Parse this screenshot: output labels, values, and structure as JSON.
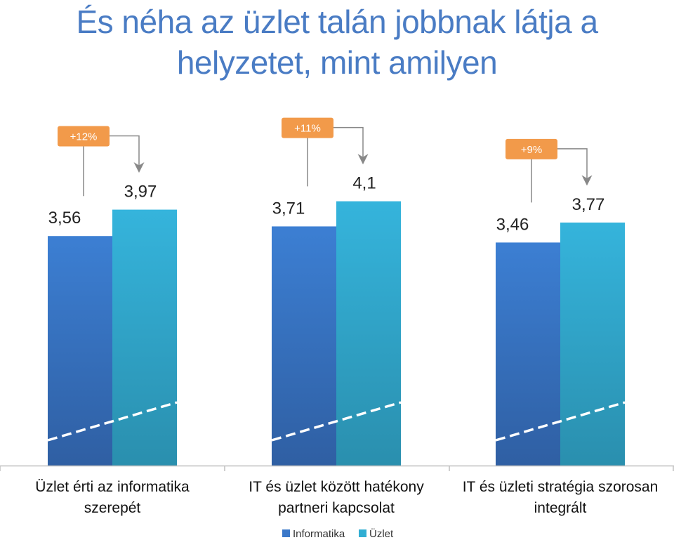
{
  "title_line1": "És néha az üzlet talán jobbnak látja a",
  "title_line2": "helyzetet, mint amilyen",
  "chart_data": {
    "type": "bar",
    "categories": [
      [
        "Üzlet érti az informatika",
        "szerepét"
      ],
      [
        "IT és üzlet között hatékony",
        "partneri kapcsolat"
      ],
      [
        "IT és üzleti stratégia szorosan",
        "integrált"
      ]
    ],
    "series": [
      {
        "name": "Informatika",
        "values": [
          3.56,
          3.71,
          3.46
        ],
        "labels": [
          "3,56",
          "3,71",
          "3,46"
        ]
      },
      {
        "name": "Üzlet",
        "values": [
          3.97,
          4.1,
          3.77
        ],
        "labels": [
          "3,97",
          "4,1",
          "3,77"
        ]
      }
    ],
    "change_labels": [
      "+12%",
      "+11%",
      "+9%"
    ],
    "colors": {
      "Informatika": "#3a78c9",
      "Üzlet": "#31aed3",
      "change_badge": "#f29a4a",
      "title": "#4a7cc4"
    },
    "grid": false,
    "legend": "bottom"
  }
}
